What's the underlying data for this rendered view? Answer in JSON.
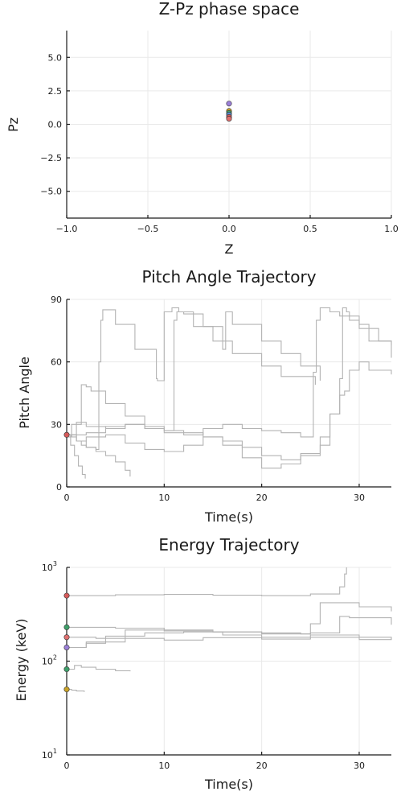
{
  "chart_data": [
    {
      "type": "scatter",
      "title": "Z-Pz phase space",
      "xlabel": "Z",
      "ylabel": "Pz",
      "xlim": [
        -1,
        1
      ],
      "ylim": [
        -7,
        7
      ],
      "xticks": [
        -1.0,
        -0.5,
        0.0,
        0.5,
        1.0
      ],
      "xtick_labels": [
        "−1.0",
        "−0.5",
        "0.0",
        "0.5",
        "1.0"
      ],
      "yticks": [
        -5.0,
        -2.5,
        0.0,
        2.5,
        5.0
      ],
      "ytick_labels": [
        "−5.0",
        "−2.5",
        "0.0",
        "2.5",
        "5.0"
      ],
      "grid": true,
      "points": [
        {
          "x": 0,
          "y": 1.55,
          "color": "#9b7fd8"
        },
        {
          "x": 0,
          "y": 1.0,
          "color": "#c9a227"
        },
        {
          "x": 0,
          "y": 0.85,
          "color": "#3fa06a"
        },
        {
          "x": 0,
          "y": 0.72,
          "color": "#5a8fd6"
        },
        {
          "x": 0,
          "y": 0.55,
          "color": "#d65a5a"
        },
        {
          "x": 0,
          "y": 0.42,
          "color": "#e07070"
        }
      ]
    },
    {
      "type": "line",
      "title": "Pitch Angle Trajectory",
      "xlabel": "Time(s)",
      "ylabel": "Pitch Angle",
      "xlim": [
        0,
        33.3
      ],
      "ylim": [
        0,
        90
      ],
      "xticks": [
        0,
        10,
        20,
        30
      ],
      "xtick_labels": [
        "0",
        "10",
        "20",
        "30"
      ],
      "yticks": [
        0,
        30,
        60,
        90
      ],
      "ytick_labels": [
        "0",
        "30",
        "60",
        "90"
      ],
      "grid": true,
      "line_color": "#b3b3b3",
      "series": [
        {
          "x": [
            0,
            0.5,
            1,
            1.5,
            2,
            3,
            3.3,
            3.5,
            3.7,
            5,
            7,
            9.2,
            9.3,
            10,
            10.8,
            11.5,
            13,
            15,
            17,
            20,
            22,
            25.5
          ],
          "y": [
            25,
            24,
            22,
            20,
            19,
            18,
            60,
            80,
            85,
            78,
            66,
            52,
            51,
            84,
            86,
            84,
            77,
            70,
            64,
            58,
            53,
            49
          ]
        },
        {
          "x": [
            0,
            1,
            1.5,
            2,
            2.5,
            4,
            6,
            8,
            10,
            11,
            11.3,
            12,
            14,
            16,
            16.3,
            17,
            20,
            22,
            24,
            26
          ],
          "y": [
            25,
            30,
            49,
            48,
            46,
            40,
            34,
            29,
            27,
            80,
            84,
            83,
            77,
            66,
            84,
            78,
            70,
            64,
            58,
            51
          ]
        },
        {
          "x": [
            0,
            0.5,
            1,
            2,
            4,
            6,
            8,
            10,
            12,
            14,
            16,
            18,
            20,
            22,
            24,
            25.3,
            25.6,
            26,
            27,
            28,
            29,
            30,
            32,
            33.3
          ],
          "y": [
            24,
            30,
            31,
            29,
            28,
            30,
            28,
            26,
            25,
            28,
            30,
            28,
            27,
            26,
            24,
            55,
            80,
            86,
            84,
            82,
            80,
            76,
            70,
            62
          ]
        },
        {
          "x": [
            0,
            1,
            2,
            4,
            6,
            8,
            10,
            12,
            14,
            16,
            18,
            20,
            22,
            24,
            26,
            27,
            28,
            28.3,
            28.7,
            29,
            30,
            31,
            33.3
          ],
          "y": [
            25,
            22,
            24,
            25,
            21,
            18,
            17,
            20,
            24,
            20,
            14,
            9,
            11,
            16,
            24,
            35,
            52,
            86,
            84,
            82,
            78,
            70,
            68
          ]
        },
        {
          "x": [
            0,
            2,
            4,
            6,
            8,
            10,
            12,
            14,
            16,
            18,
            20,
            22,
            24,
            26,
            27,
            28,
            28.5,
            29,
            30,
            31,
            33.3
          ],
          "y": [
            25,
            26,
            29,
            30,
            28,
            27,
            26,
            24,
            22,
            19,
            15,
            13,
            15,
            20,
            35,
            44,
            46,
            56,
            60,
            56,
            54
          ]
        },
        {
          "x": [
            0,
            0.4,
            0.8,
            1.2,
            1.6,
            1.9
          ],
          "y": [
            25,
            20,
            15,
            10,
            6,
            4
          ]
        },
        {
          "x": [
            0,
            1,
            2,
            3,
            4,
            5,
            6,
            6.5
          ],
          "y": [
            25,
            22,
            19,
            17,
            15,
            12,
            8,
            5
          ]
        }
      ],
      "points": [
        {
          "x": 0,
          "y": 25,
          "color": "#d65a5a"
        }
      ]
    },
    {
      "type": "line",
      "title": "Energy Trajectory",
      "xlabel": "Time(s)",
      "ylabel": "Energy (keV)",
      "xscale": "linear",
      "yscale": "log",
      "xlim": [
        0,
        33.3
      ],
      "ylim": [
        10,
        1000
      ],
      "xticks": [
        0,
        10,
        20,
        30
      ],
      "xtick_labels": [
        "0",
        "10",
        "20",
        "30"
      ],
      "yticks": [
        10,
        100,
        1000
      ],
      "ytick_labels": [
        "10",
        "10",
        "10"
      ],
      "ytick_exponents": [
        "1",
        "2",
        "3"
      ],
      "grid": true,
      "line_color": "#b3b3b3",
      "series": [
        {
          "x": [
            0,
            5,
            10,
            15,
            20,
            25,
            28,
            28.5,
            28.7
          ],
          "y": [
            500,
            510,
            515,
            505,
            500,
            520,
            620,
            850,
            1000
          ]
        },
        {
          "x": [
            0,
            5,
            10,
            15,
            20,
            24,
            25,
            26,
            30,
            33.3
          ],
          "y": [
            230,
            225,
            215,
            205,
            200,
            195,
            250,
            420,
            380,
            340
          ]
        },
        {
          "x": [
            0,
            3,
            6,
            10,
            15,
            20,
            25,
            28,
            29,
            33.3
          ],
          "y": [
            180,
            175,
            215,
            210,
            205,
            195,
            200,
            300,
            290,
            245
          ]
        },
        {
          "x": [
            0,
            2,
            4,
            8,
            12,
            16,
            20,
            25,
            30,
            33.3
          ],
          "y": [
            140,
            160,
            185,
            200,
            205,
            190,
            180,
            190,
            180,
            172
          ]
        },
        {
          "x": [
            0,
            2,
            4,
            6,
            10,
            14,
            20,
            25,
            30,
            33.3
          ],
          "y": [
            140,
            155,
            160,
            175,
            168,
            178,
            172,
            180,
            170,
            175
          ]
        },
        {
          "x": [
            0,
            0.8,
            1.5,
            3,
            5,
            6.5
          ],
          "y": [
            82,
            90,
            86,
            82,
            79,
            78
          ]
        },
        {
          "x": [
            0,
            0.5,
            1,
            1.5,
            1.8
          ],
          "y": [
            50,
            49,
            48,
            48,
            47
          ]
        }
      ],
      "points": [
        {
          "x": 0,
          "y": 500,
          "color": "#d65a5a"
        },
        {
          "x": 0,
          "y": 230,
          "color": "#3fa06a"
        },
        {
          "x": 0,
          "y": 180,
          "color": "#e07070"
        },
        {
          "x": 0,
          "y": 140,
          "color": "#9b7fd8"
        },
        {
          "x": 0,
          "y": 82,
          "color": "#3fa06a"
        },
        {
          "x": 0,
          "y": 50,
          "color": "#c9a227"
        }
      ]
    }
  ]
}
